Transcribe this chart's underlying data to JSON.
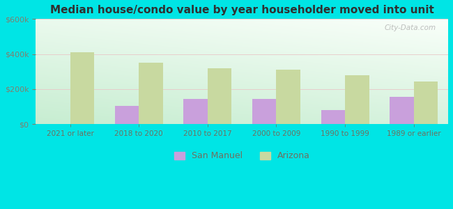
{
  "title": "Median house/condo value by year householder moved into unit",
  "categories": [
    "2021 or later",
    "2018 to 2020",
    "2010 to 2017",
    "2000 to 2009",
    "1990 to 1999",
    "1989 or earlier"
  ],
  "san_manuel": [
    null,
    105000,
    145000,
    145000,
    80000,
    155000
  ],
  "arizona": [
    410000,
    350000,
    320000,
    310000,
    280000,
    245000
  ],
  "san_manuel_color": "#c9a0dc",
  "arizona_color": "#c8d9a0",
  "background_outer": "#00e5e5",
  "ylabel_color": "#808070",
  "xlabel_color": "#707060",
  "title_color": "#303030",
  "ylim": [
    0,
    600000
  ],
  "yticks": [
    0,
    200000,
    400000,
    600000
  ],
  "bar_width": 0.35,
  "legend_labels": [
    "San Manuel",
    "Arizona"
  ],
  "watermark": "City-Data.com"
}
